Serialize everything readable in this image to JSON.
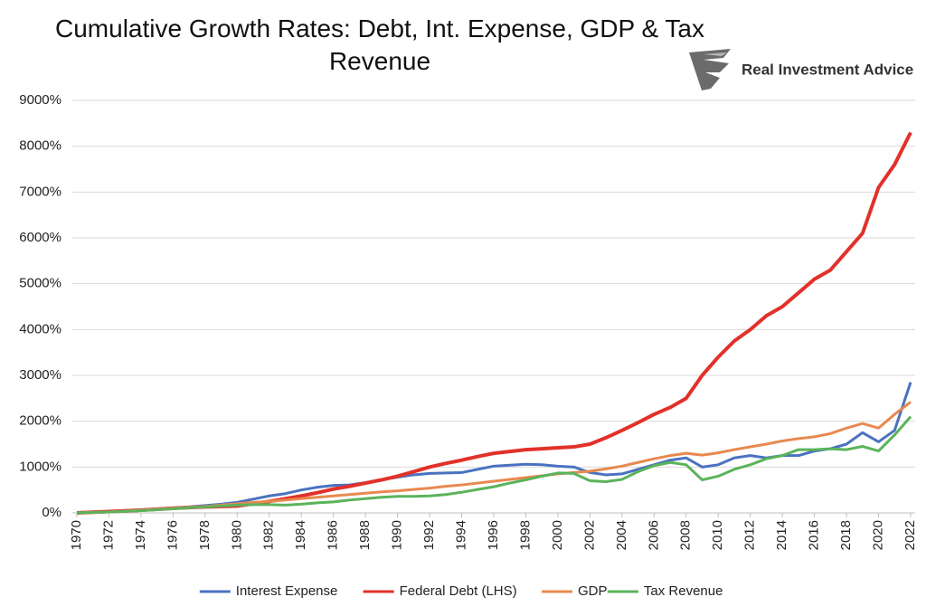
{
  "brand": "Real Investment Advice",
  "chart_data": {
    "type": "line",
    "title": "Cumulative Growth Rates: Debt, Int. Expense, GDP & Tax Revenue",
    "x": [
      1970,
      1971,
      1972,
      1973,
      1974,
      1975,
      1976,
      1977,
      1978,
      1979,
      1980,
      1981,
      1982,
      1983,
      1984,
      1985,
      1986,
      1987,
      1988,
      1989,
      1990,
      1991,
      1992,
      1993,
      1994,
      1995,
      1996,
      1997,
      1998,
      1999,
      2000,
      2001,
      2002,
      2003,
      2004,
      2005,
      2006,
      2007,
      2008,
      2009,
      2010,
      2011,
      2012,
      2013,
      2014,
      2015,
      2016,
      2017,
      2018,
      2019,
      2020,
      2021,
      2022
    ],
    "xlim": [
      1970,
      2022
    ],
    "xticks": [
      1970,
      1972,
      1974,
      1976,
      1978,
      1980,
      1982,
      1984,
      1986,
      1988,
      1990,
      1992,
      1994,
      1996,
      1998,
      2000,
      2002,
      2004,
      2006,
      2008,
      2010,
      2012,
      2014,
      2016,
      2018,
      2020,
      2022
    ],
    "ylim": [
      0,
      9000
    ],
    "yticks": [
      {
        "value": 0,
        "label": "0%"
      },
      {
        "value": 1000,
        "label": "1000%"
      },
      {
        "value": 2000,
        "label": "2000%"
      },
      {
        "value": 3000,
        "label": "3000%"
      },
      {
        "value": 4000,
        "label": "4000%"
      },
      {
        "value": 5000,
        "label": "5000%"
      },
      {
        "value": 6000,
        "label": "6000%"
      },
      {
        "value": 7000,
        "label": "7000%"
      },
      {
        "value": 8000,
        "label": "8000%"
      },
      {
        "value": 9000,
        "label": "9000%"
      }
    ],
    "grid": true,
    "legend": "bottom",
    "series": [
      {
        "name": "Interest Expense",
        "color": "#4a72c0",
        "values": [
          0,
          10,
          30,
          50,
          70,
          90,
          110,
          130,
          160,
          190,
          230,
          300,
          370,
          420,
          500,
          560,
          600,
          610,
          660,
          720,
          780,
          830,
          860,
          870,
          880,
          950,
          1020,
          1040,
          1060,
          1050,
          1020,
          1000,
          880,
          830,
          850,
          950,
          1050,
          1150,
          1200,
          1000,
          1050,
          1200,
          1250,
          1200,
          1250,
          1250,
          1350,
          1400,
          1500,
          1750,
          1550,
          1800,
          2850
        ]
      },
      {
        "name": "Federal Debt (LHS)",
        "color": "#e2312a",
        "values": [
          0,
          15,
          30,
          45,
          60,
          80,
          100,
          115,
          130,
          140,
          150,
          200,
          250,
          310,
          370,
          440,
          520,
          580,
          650,
          720,
          800,
          900,
          1000,
          1080,
          1150,
          1230,
          1300,
          1340,
          1380,
          1400,
          1420,
          1440,
          1500,
          1640,
          1800,
          1970,
          2150,
          2300,
          2500,
          3000,
          3400,
          3750,
          4000,
          4300,
          4500,
          4800,
          5100,
          5300,
          5700,
          6100,
          7100,
          7600,
          8300
        ]
      },
      {
        "name": "GDP",
        "color": "#e8894f",
        "values": [
          0,
          10,
          20,
          40,
          60,
          80,
          100,
          120,
          140,
          170,
          200,
          230,
          250,
          280,
          310,
          340,
          370,
          400,
          430,
          460,
          480,
          510,
          540,
          580,
          610,
          650,
          690,
          730,
          770,
          810,
          850,
          880,
          910,
          960,
          1020,
          1100,
          1180,
          1250,
          1300,
          1260,
          1310,
          1380,
          1440,
          1500,
          1570,
          1620,
          1660,
          1730,
          1850,
          1950,
          1850,
          2150,
          2420
        ]
      },
      {
        "name": "Tax Revenue",
        "color": "#5bb35b",
        "values": [
          0,
          10,
          20,
          35,
          50,
          70,
          90,
          110,
          130,
          150,
          170,
          180,
          180,
          170,
          190,
          220,
          240,
          280,
          310,
          340,
          360,
          360,
          370,
          400,
          450,
          510,
          570,
          650,
          720,
          800,
          870,
          860,
          700,
          680,
          730,
          900,
          1030,
          1100,
          1050,
          720,
          800,
          950,
          1050,
          1180,
          1250,
          1380,
          1380,
          1400,
          1380,
          1450,
          1350,
          1700,
          2100
        ]
      }
    ]
  }
}
